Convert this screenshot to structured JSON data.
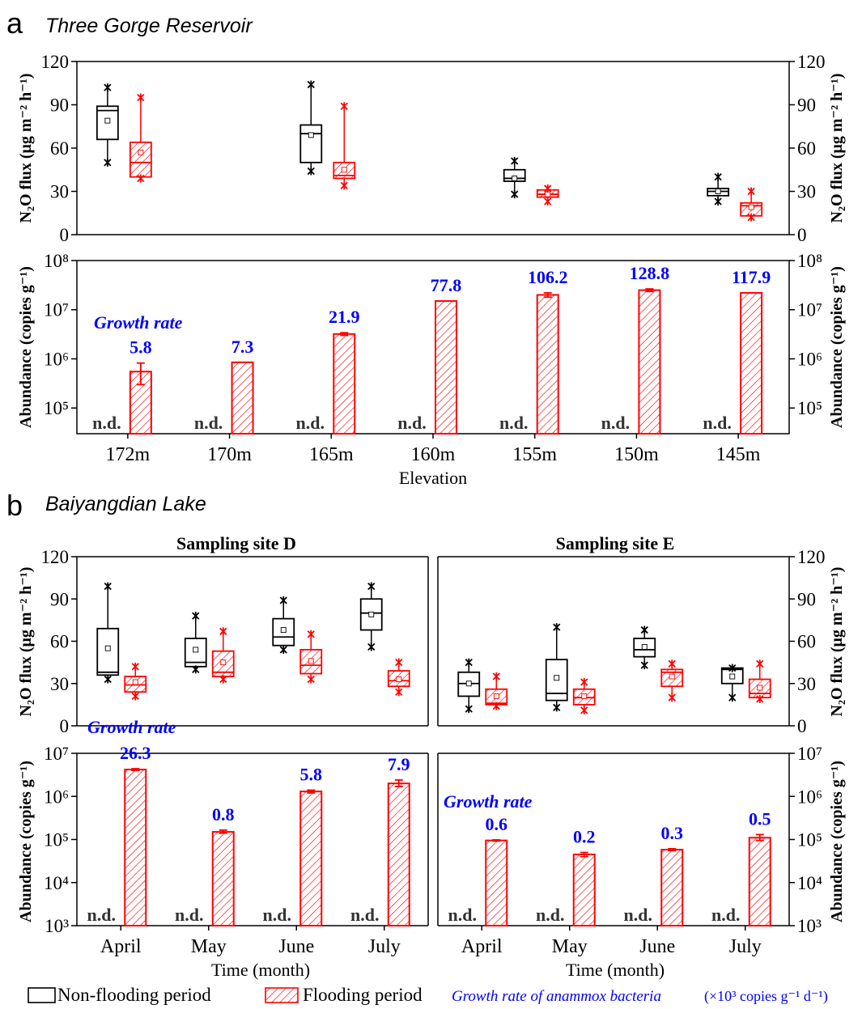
{
  "panels": {
    "a": {
      "letter": "a",
      "title": "Three Gorge Reservoir"
    },
    "b": {
      "letter": "b",
      "title": "Baiyangdian Lake"
    }
  },
  "colors": {
    "non_flooding": "#000000",
    "flooding": "#ff0000",
    "growth": "#0000ff",
    "axis": "#000000"
  },
  "legend": {
    "non_flooding": "Non-flooding period",
    "flooding": "Flooding period",
    "growth_prefix": "Growth rate of anammox bacteria",
    "growth_suffix": "(×10³ copies g⁻¹ d⁻¹)"
  },
  "chart_data": [
    {
      "id": "a-flux",
      "type": "box",
      "ylabel": "N₂O flux (μg m⁻² h⁻¹)",
      "ylim": [
        0,
        120
      ],
      "yticks": [
        0,
        30,
        60,
        90,
        120
      ],
      "categories": [
        "172m",
        "170m",
        "165m",
        "160m",
        "155m",
        "150m",
        "145m"
      ],
      "series": [
        {
          "name": "Non-flooding period",
          "color": "#000000",
          "boxes": [
            {
              "category": "172m",
              "min": 50,
              "q1": 66,
              "median": 86,
              "q3": 89,
              "max": 102,
              "mean": 79
            },
            {
              "category": "165m",
              "min": 44,
              "q1": 50,
              "median": 70,
              "q3": 76,
              "max": 104,
              "mean": 69
            },
            {
              "category": "155m",
              "min": 28,
              "q1": 37,
              "median": 39,
              "q3": 45,
              "max": 51,
              "mean": 39
            },
            {
              "category": "145m",
              "min": 23,
              "q1": 27,
              "median": 30,
              "q3": 32,
              "max": 40,
              "mean": 30
            }
          ]
        },
        {
          "name": "Flooding period",
          "color": "#ff0000",
          "boxes": [
            {
              "category": "172m",
              "min": 39,
              "q1": 40,
              "median": 50,
              "q3": 64,
              "max": 95,
              "mean": 57
            },
            {
              "category": "165m",
              "min": 34,
              "q1": 39,
              "median": 41,
              "q3": 50,
              "max": 89,
              "mean": 45
            },
            {
              "category": "155m",
              "min": 23,
              "q1": 26,
              "median": 28,
              "q3": 31,
              "max": 32,
              "mean": 28
            },
            {
              "category": "145m",
              "min": 12,
              "q1": 13,
              "median": 20,
              "q3": 22,
              "max": 30,
              "mean": 19
            }
          ]
        }
      ]
    },
    {
      "id": "a-abundance",
      "type": "bar",
      "yscale": "log",
      "ylabel": "Abundance (copies g⁻¹)",
      "ylim": [
        30000,
        100000000
      ],
      "yticks": [
        100000,
        1000000,
        10000000,
        100000000
      ],
      "ytick_labels": [
        "10⁵",
        "10⁶",
        "10⁷",
        "10⁸"
      ],
      "xlabel": "Elevation",
      "categories": [
        "172m",
        "170m",
        "165m",
        "160m",
        "155m",
        "150m",
        "145m"
      ],
      "values": [
        550000,
        850000,
        3200000,
        15000000,
        20000000,
        25000000,
        22000000
      ],
      "errors": [
        [
          300000,
          820000
        ],
        null,
        [
          3000000,
          3400000
        ],
        null,
        [
          18000000,
          22000000
        ],
        [
          23500000,
          26500000
        ],
        null
      ],
      "nd_label": "n.d.",
      "growth_label": "Growth rate",
      "growth_rates": [
        "5.8",
        "7.3",
        "21.9",
        "77.8",
        "106.2",
        "128.8",
        "117.9"
      ]
    },
    {
      "id": "b-flux-D",
      "type": "box",
      "title": "Sampling site D",
      "ylabel": "N₂O flux (μg m⁻² h⁻¹)",
      "ylim": [
        0,
        120
      ],
      "yticks": [
        0,
        30,
        60,
        90,
        120
      ],
      "categories": [
        "April",
        "May",
        "June",
        "July"
      ],
      "series": [
        {
          "name": "Non-flooding period",
          "color": "#000000",
          "boxes": [
            {
              "category": "April",
              "min": 33,
              "q1": 36,
              "median": 38,
              "q3": 69,
              "max": 99,
              "mean": 55
            },
            {
              "category": "May",
              "min": 40,
              "q1": 42,
              "median": 45,
              "q3": 62,
              "max": 78,
              "mean": 54
            },
            {
              "category": "June",
              "min": 54,
              "q1": 57,
              "median": 63,
              "q3": 76,
              "max": 89,
              "mean": 68
            },
            {
              "category": "July",
              "min": 56,
              "q1": 68,
              "median": 80,
              "q3": 90,
              "max": 99,
              "mean": 79
            }
          ]
        },
        {
          "name": "Flooding period",
          "color": "#ff0000",
          "boxes": [
            {
              "category": "April",
              "min": 21,
              "q1": 24,
              "median": 29,
              "q3": 35,
              "max": 42,
              "mean": 31
            },
            {
              "category": "May",
              "min": 33,
              "q1": 35,
              "median": 38,
              "q3": 53,
              "max": 67,
              "mean": 45
            },
            {
              "category": "June",
              "min": 33,
              "q1": 37,
              "median": 43,
              "q3": 54,
              "max": 65,
              "mean": 46
            },
            {
              "category": "July",
              "min": 24,
              "q1": 28,
              "median": 32,
              "q3": 39,
              "max": 45,
              "mean": 33
            }
          ]
        }
      ]
    },
    {
      "id": "b-flux-E",
      "type": "box",
      "title": "Sampling site E",
      "ylabel": "N₂O flux (μg m⁻² h⁻¹)",
      "ylim": [
        0,
        120
      ],
      "yticks": [
        0,
        30,
        60,
        90,
        120
      ],
      "categories": [
        "April",
        "May",
        "June",
        "July"
      ],
      "series": [
        {
          "name": "Non-flooding period",
          "color": "#000000",
          "boxes": [
            {
              "category": "April",
              "min": 12,
              "q1": 21,
              "median": 30,
              "q3": 38,
              "max": 45,
              "mean": 30
            },
            {
              "category": "May",
              "min": 13,
              "q1": 18,
              "median": 23,
              "q3": 47,
              "max": 70,
              "mean": 34
            },
            {
              "category": "June",
              "min": 43,
              "q1": 49,
              "median": 54,
              "q3": 62,
              "max": 68,
              "mean": 56
            },
            {
              "category": "July",
              "min": 20,
              "q1": 30,
              "median": 40,
              "q3": 41,
              "max": 41,
              "mean": 35
            }
          ]
        },
        {
          "name": "Flooding period",
          "color": "#ff0000",
          "boxes": [
            {
              "category": "April",
              "min": 14,
              "q1": 15,
              "median": 16,
              "q3": 26,
              "max": 35,
              "mean": 21
            },
            {
              "category": "May",
              "min": 11,
              "q1": 15,
              "median": 20,
              "q3": 26,
              "max": 31,
              "mean": 21
            },
            {
              "category": "June",
              "min": 20,
              "q1": 28,
              "median": 38,
              "q3": 40,
              "max": 44,
              "mean": 35
            },
            {
              "category": "July",
              "min": 19,
              "q1": 20,
              "median": 23,
              "q3": 33,
              "max": 44,
              "mean": 27
            }
          ]
        }
      ]
    },
    {
      "id": "b-abundance-D",
      "type": "bar",
      "yscale": "log",
      "ylabel": "Abundance (copies g⁻¹)",
      "ylim": [
        1000,
        10000000
      ],
      "yticks": [
        1000,
        10000,
        100000,
        1000000,
        10000000
      ],
      "ytick_labels": [
        "10³",
        "10⁴",
        "10⁵",
        "10⁶",
        "10⁷"
      ],
      "xlabel": "Time (month)",
      "categories": [
        "April",
        "May",
        "June",
        "July"
      ],
      "values": [
        4200000,
        150000,
        1300000,
        2000000
      ],
      "errors": [
        [
          4000000,
          4400000
        ],
        [
          140000,
          165000
        ],
        [
          1200000,
          1400000
        ],
        [
          1700000,
          2400000
        ]
      ],
      "nd_label": "n.d.",
      "growth_label": "Growth rate",
      "growth_rates": [
        "26.3",
        "0.8",
        "5.8",
        "7.9"
      ]
    },
    {
      "id": "b-abundance-E",
      "type": "bar",
      "yscale": "log",
      "ylabel": "Abundance (copies g⁻¹)",
      "ylim": [
        1000,
        10000000
      ],
      "yticks": [
        1000,
        10000,
        100000,
        1000000,
        10000000
      ],
      "ytick_labels": [
        "10³",
        "10⁴",
        "10⁵",
        "10⁶",
        "10⁷"
      ],
      "xlabel": "Time (month)",
      "categories": [
        "April",
        "May",
        "June",
        "July"
      ],
      "values": [
        95000,
        45000,
        58000,
        110000
      ],
      "errors": [
        [
          92000,
          98000
        ],
        [
          40000,
          50000
        ],
        [
          55000,
          61000
        ],
        [
          95000,
          130000
        ]
      ],
      "nd_label": "n.d.",
      "growth_label": "Growth rate",
      "growth_rates": [
        "0.6",
        "0.2",
        "0.3",
        "0.5"
      ]
    }
  ]
}
